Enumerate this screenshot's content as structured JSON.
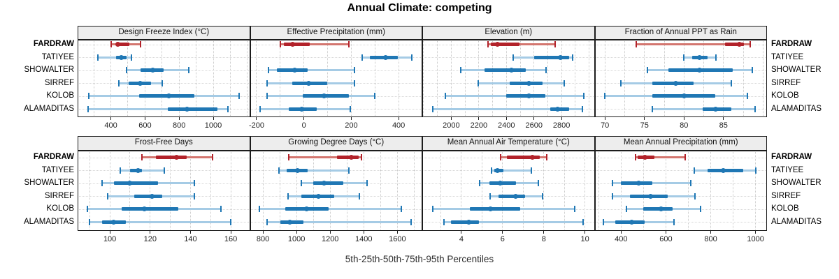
{
  "title_note": "lattice-style percentile dotplot",
  "sites": [
    "FARDRAW",
    "TATIYEE",
    "SHOWALTER",
    "SIRREF",
    "KOLOB",
    "ALAMADITAS"
  ],
  "highlight_site": "FARDRAW",
  "colors": {
    "highlight_dark": "#b2222a",
    "highlight_light": "#d3766f",
    "series_dark": "#1f77b4",
    "series_light": "#a5cbe5",
    "gridline": "#c9c9c9",
    "strip_background": "#ededed"
  },
  "chart_data": {
    "type": "dotplot",
    "title": "Annual Climate: competing",
    "caption": "5th-25th-50th-75th-95th Percentiles",
    "percentile_labels": [
      "5th",
      "25th",
      "50th",
      "75th",
      "95th"
    ],
    "legend_position": "none",
    "grid": "dotted-vertical",
    "rows": [
      "FARDRAW",
      "TATIYEE",
      "SHOWALTER",
      "SIRREF",
      "KOLOB",
      "ALAMADITAS"
    ],
    "panels": [
      {
        "title": "Design Freeze Index (°C)",
        "ticks": [
          400,
          600,
          800,
          1000
        ],
        "range": [
          205,
          1215
        ],
        "minor_step": 100,
        "values": {
          "FARDRAW": [
            400,
            430,
            440,
            510,
            575
          ],
          "TATIYEE": [
            325,
            430,
            460,
            490,
            520
          ],
          "SHOWALTER": [
            490,
            575,
            645,
            710,
            855
          ],
          "SIRREF": [
            445,
            505,
            572,
            635,
            700
          ],
          "KOLOB": [
            270,
            565,
            740,
            890,
            1150
          ],
          "ALAMADITAS": [
            265,
            735,
            845,
            1025,
            1085
          ]
        }
      },
      {
        "title": "Effective Precipitation (mm)",
        "ticks": [
          -200,
          0,
          200,
          400
        ],
        "range": [
          -228,
          500
        ],
        "minor_step": 100,
        "values": {
          "FARDRAW": [
            -100,
            -85,
            -48,
            24,
            190
          ],
          "TATIYEE": [
            245,
            278,
            346,
            398,
            455
          ],
          "SHOWALTER": [
            -150,
            -115,
            -38,
            15,
            215
          ],
          "SIRREF": [
            -155,
            -50,
            20,
            97,
            215
          ],
          "KOLOB": [
            -155,
            -5,
            85,
            190,
            300
          ],
          "ALAMADITAS": [
            -185,
            -65,
            -8,
            55,
            195
          ]
        }
      },
      {
        "title": "Elevation (m)",
        "ticks": [
          2000,
          2200,
          2400,
          2600,
          2800
        ],
        "range": [
          1790,
          3040
        ],
        "minor_step": 100,
        "values": {
          "FARDRAW": [
            2265,
            2285,
            2335,
            2495,
            2755
          ],
          "TATIYEE": [
            2450,
            2600,
            2790,
            2855,
            2880
          ],
          "SHOWALTER": [
            2070,
            2240,
            2435,
            2540,
            2690
          ],
          "SIRREF": [
            2195,
            2425,
            2565,
            2660,
            2820
          ],
          "KOLOB": [
            1955,
            2400,
            2565,
            2685,
            2960
          ],
          "ALAMADITAS": [
            1865,
            2720,
            2770,
            2855,
            2950
          ]
        }
      },
      {
        "title": "Fraction of Annual PPT as Rain",
        "ticks": [
          70,
          75,
          80,
          85
        ],
        "range": [
          68.7,
          90.5
        ],
        "minor_step": 2.5,
        "values": {
          "FARDRAW": [
            74,
            85.2,
            87,
            87.6,
            88.4
          ],
          "TATIYEE": [
            80,
            81,
            82,
            83,
            84
          ],
          "SHOWALTER": [
            75.4,
            78,
            82,
            86.2,
            88.6
          ],
          "SIRREF": [
            72,
            76,
            79,
            81.2,
            86
          ],
          "KOLOB": [
            70,
            76,
            80,
            84,
            88
          ],
          "ALAMADITAS": [
            76,
            82.4,
            84,
            86,
            89
          ]
        }
      },
      {
        "title": "Frost-Free Days",
        "ticks": [
          100,
          120,
          140,
          160
        ],
        "range": [
          84,
          169.5
        ],
        "minor_step": 10,
        "values": {
          "FARDRAW": [
            116,
            123,
            133,
            138,
            151
          ],
          "TATIYEE": [
            105,
            110,
            114,
            116,
            127
          ],
          "SHOWALTER": [
            96,
            102,
            110,
            124,
            142
          ],
          "SIRREF": [
            99,
            112,
            121,
            126,
            142
          ],
          "KOLOB": [
            89,
            106,
            117,
            134,
            155
          ],
          "ALAMADITAS": [
            90,
            96,
            102,
            108,
            160
          ]
        }
      },
      {
        "title": "Growing Degree Days (°C)",
        "ticks": [
          800,
          1000,
          1200,
          1400,
          1600
        ],
        "range": [
          723,
          1748
        ],
        "minor_step": 100,
        "values": {
          "FARDRAW": [
            955,
            1240,
            1325,
            1370,
            1385
          ],
          "TATIYEE": [
            895,
            940,
            1005,
            1065,
            1310
          ],
          "SHOWALTER": [
            1030,
            1100,
            1165,
            1280,
            1420
          ],
          "SIRREF": [
            950,
            1030,
            1130,
            1225,
            1375
          ],
          "KOLOB": [
            780,
            935,
            1060,
            1190,
            1625
          ],
          "ALAMADITAS": [
            825,
            905,
            960,
            1040,
            1680
          ]
        }
      },
      {
        "title": "Mean Annual Air Temperature (°C)",
        "ticks": [
          4,
          6,
          8,
          10
        ],
        "range": [
          2.1,
          10.47
        ],
        "minor_step": 1,
        "values": {
          "FARDRAW": [
            5.9,
            6.2,
            7.45,
            7.8,
            8.15
          ],
          "TATIYEE": [
            5.45,
            5.6,
            5.75,
            6.05,
            7.4
          ],
          "SHOWALTER": [
            4.9,
            5.35,
            5.9,
            6.65,
            7.75
          ],
          "SIRREF": [
            5.4,
            5.8,
            6.65,
            7.1,
            7.95
          ],
          "KOLOB": [
            2.6,
            4.4,
            5.4,
            6.85,
            9.5
          ],
          "ALAMADITAS": [
            3.15,
            3.5,
            4.35,
            4.85,
            9.9
          ]
        }
      },
      {
        "title": "Mean Annual Precipitation (mm)",
        "ticks": [
          400,
          600,
          800,
          1000
        ],
        "range": [
          282,
          1051
        ],
        "minor_step": 100,
        "values": {
          "FARDRAW": [
            465,
            475,
            507,
            550,
            685
          ],
          "TATIYEE": [
            725,
            785,
            857,
            945,
            1000
          ],
          "SHOWALTER": [
            360,
            400,
            478,
            540,
            710
          ],
          "SIRREF": [
            360,
            440,
            533,
            608,
            730
          ],
          "KOLOB": [
            423,
            500,
            577,
            630,
            755
          ],
          "ALAMADITAS": [
            320,
            375,
            447,
            505,
            637
          ]
        }
      }
    ]
  }
}
